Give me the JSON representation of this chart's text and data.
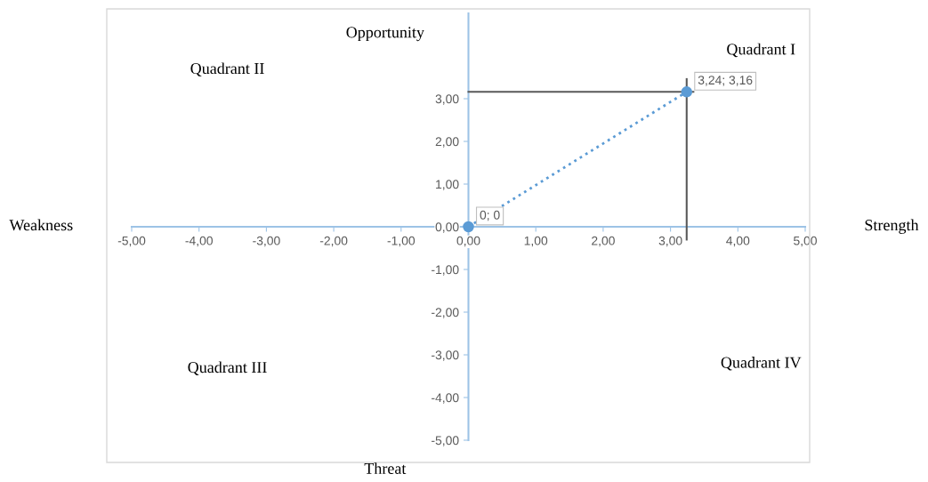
{
  "chart_data": {
    "type": "scatter",
    "x": [
      0,
      3.24
    ],
    "series": [
      {
        "color": "#5b9bd5",
        "values": [
          0,
          3.16
        ],
        "value_labels": [
          "0; 0",
          "3,24; 3,16"
        ],
        "line_style": "dotted"
      }
    ],
    "marker": "circle",
    "xlim": [
      -5,
      5
    ],
    "ylim": [
      -5,
      5
    ],
    "xticks": [
      {
        "value": -5,
        "label": "-5,00"
      },
      {
        "value": -4,
        "label": "-4,00"
      },
      {
        "value": -3,
        "label": "-3,00"
      },
      {
        "value": -2,
        "label": "-2,00"
      },
      {
        "value": -1,
        "label": "-1,00"
      },
      {
        "value": 0,
        "label": "0,00"
      },
      {
        "value": 1,
        "label": "1,00"
      },
      {
        "value": 2,
        "label": "2,00"
      },
      {
        "value": 3,
        "label": "3,00"
      },
      {
        "value": 4,
        "label": "4,00"
      },
      {
        "value": 5,
        "label": "5,00"
      }
    ],
    "yticks": [
      {
        "value": -5,
        "label": "-5,00"
      },
      {
        "value": -4,
        "label": "-4,00"
      },
      {
        "value": -3,
        "label": "-3,00"
      },
      {
        "value": -2,
        "label": "-2,00"
      },
      {
        "value": -1,
        "label": "-1,00"
      },
      {
        "value": 0,
        "label": "0,00"
      },
      {
        "value": 1,
        "label": "1,00"
      },
      {
        "value": 2,
        "label": "2,00"
      },
      {
        "value": 3,
        "label": "3,00"
      }
    ],
    "ref_lines": [
      {
        "axis": "x",
        "value": 3.24,
        "color": "#595959"
      },
      {
        "axis": "y",
        "value": 3.16,
        "color": "#595959"
      }
    ],
    "annotations": [
      "Opportunity",
      "Threat",
      "Weakness",
      "Strength",
      "Quadrant I",
      "Quadrant II",
      "Quadrant III",
      "Quadrant IV"
    ],
    "grid": false
  }
}
